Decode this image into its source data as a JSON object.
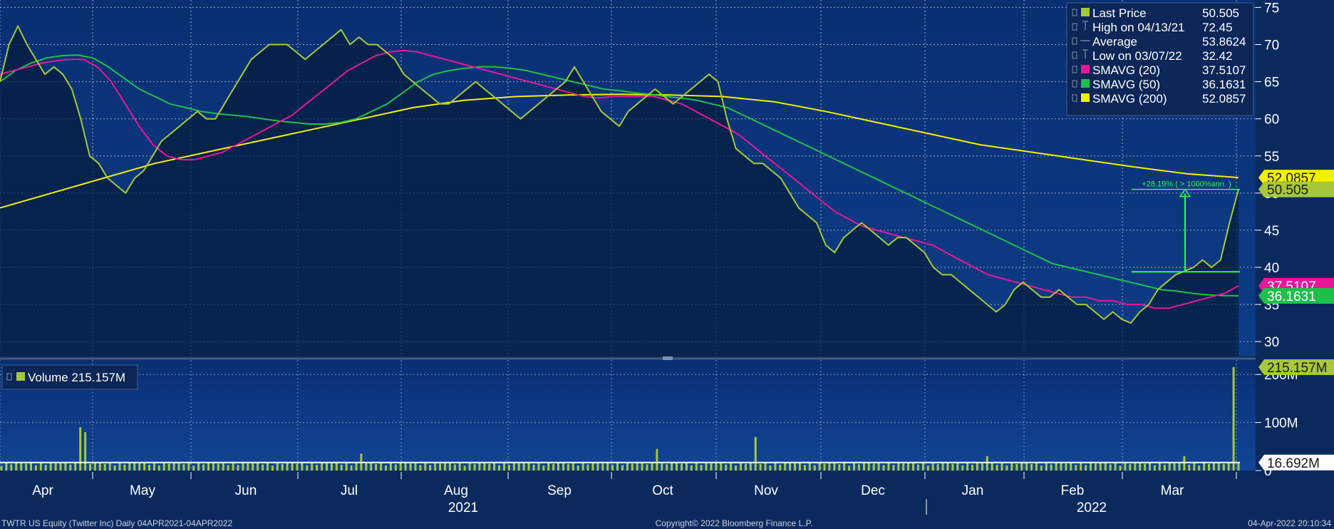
{
  "chart_data": [
    {
      "type": "line",
      "panel": "price",
      "ylim": [
        28,
        76
      ],
      "y_ticks": [
        30,
        35,
        40,
        45,
        50,
        55,
        60,
        65,
        70,
        75
      ],
      "legend": {
        "placement": "top-right",
        "rows": [
          {
            "label": "Last Price",
            "value": "50.505",
            "color": "#a7c838",
            "marker": "square"
          },
          {
            "label": "High on 04/13/21",
            "value": "72.45",
            "color": "#9aa9c4",
            "marker": "tick"
          },
          {
            "label": "Average",
            "value": "53.8624",
            "color": "#9aa9c4",
            "marker": "dash"
          },
          {
            "label": "Low on 03/07/22",
            "value": "32.42",
            "color": "#9aa9c4",
            "marker": "tick"
          },
          {
            "label": "SMAVG (20)",
            "value": "37.5107",
            "color": "#e8179a",
            "marker": "square"
          },
          {
            "label": "SMAVG (50)",
            "value": "36.1631",
            "color": "#1fc04a",
            "marker": "square"
          },
          {
            "label": "SMAVG (200)",
            "value": "52.0857",
            "color": "#f4f000",
            "marker": "square"
          }
        ]
      },
      "price_tags": [
        {
          "value": 52.0857,
          "text": "52.0857",
          "bg": "#f4f000",
          "fg": "#1a1a1a"
        },
        {
          "value": 50.505,
          "text": "50.505",
          "bg": "#a7c838",
          "fg": "#1a1a1a"
        },
        {
          "value": 37.5107,
          "text": "37.5107",
          "bg": "#e8179a",
          "fg": "#ffffff"
        },
        {
          "value": 36.1631,
          "text": "36.1631",
          "bg": "#1fc04a",
          "fg": "#ffffff"
        }
      ],
      "annotation": {
        "text": "+28.19% ( > 1000%ann. )",
        "from": 39.4,
        "to": 50.505,
        "color": "#22ff44"
      },
      "series": [
        {
          "name": "Last Price",
          "color": "#a7c838",
          "values": [
            65,
            70,
            72.5,
            70,
            68,
            66,
            67,
            66,
            64,
            60,
            55,
            54,
            52,
            51,
            50,
            52,
            53,
            55,
            57,
            58,
            59,
            60,
            61,
            60,
            60,
            62,
            64,
            66,
            68,
            69,
            70,
            70,
            70,
            69,
            68,
            69,
            70,
            71,
            72,
            70,
            71,
            70,
            70,
            69,
            68,
            66,
            65,
            64,
            63,
            62,
            62,
            63,
            64,
            65,
            64,
            63,
            62,
            61,
            60,
            61,
            62,
            63,
            64,
            65,
            67,
            65,
            63,
            61,
            60,
            59,
            61,
            62,
            63,
            64,
            63,
            62,
            63,
            64,
            65,
            66,
            65,
            60,
            56,
            55,
            54,
            54,
            53,
            52,
            50,
            48,
            47,
            46,
            43,
            42,
            44,
            45,
            46,
            45,
            44,
            43,
            44,
            44,
            43,
            42,
            40,
            39,
            39,
            38,
            37,
            36,
            35,
            34,
            35,
            37,
            38,
            37,
            36,
            36,
            37,
            36,
            35,
            35,
            34,
            33,
            34,
            33,
            32.5,
            34,
            35,
            37,
            38,
            39,
            39.5,
            40,
            41,
            40,
            41,
            46,
            50.505
          ]
        },
        {
          "name": "SMAVG (20)",
          "color": "#e8179a",
          "values": [
            66,
            66.5,
            67,
            67.5,
            67.8,
            68,
            68,
            67,
            65,
            62,
            59,
            56.5,
            55,
            54.5,
            54.5,
            55,
            55.5,
            56.5,
            57.5,
            58.5,
            59.5,
            60.5,
            62,
            63.5,
            65,
            66.5,
            67.5,
            68.5,
            69,
            69.2,
            69,
            68.5,
            68,
            67.5,
            67,
            66.5,
            66,
            65.5,
            65,
            64.5,
            64,
            63.5,
            63,
            62.8,
            63,
            63,
            63,
            63,
            62.5,
            62,
            61,
            60,
            59,
            58,
            56.5,
            55,
            53.5,
            52,
            50.5,
            49,
            47.5,
            46.5,
            45.5,
            45,
            44.5,
            44,
            43.5,
            43,
            42,
            41,
            40,
            39,
            38.5,
            38,
            37.5,
            37,
            36.5,
            36,
            36,
            35.5,
            35.5,
            35,
            35,
            34.5,
            34.5,
            35,
            35.5,
            36,
            36.5,
            37.5107
          ]
        },
        {
          "name": "SMAVG (50)",
          "color": "#1fc04a",
          "values": [
            65,
            66.5,
            67.5,
            68.2,
            68.5,
            68.6,
            68.2,
            67,
            65.5,
            64,
            63,
            62,
            61.5,
            61,
            60.7,
            60.5,
            60.3,
            60,
            59.7,
            59.5,
            59.3,
            59.3,
            59.5,
            60,
            61,
            62,
            63.5,
            65,
            66,
            66.5,
            66.8,
            67,
            67,
            66.8,
            66.5,
            66,
            65.5,
            65,
            64.5,
            64,
            63.8,
            63.5,
            63.3,
            63,
            62.8,
            62.5,
            62,
            61.5,
            60.5,
            59.5,
            58.5,
            57.5,
            56.5,
            55.5,
            54.5,
            53.5,
            52.5,
            51.5,
            50.5,
            49.5,
            48.5,
            47.5,
            46.5,
            45.5,
            44.5,
            43.5,
            42.5,
            41.5,
            40.5,
            40,
            39.5,
            39,
            38.5,
            38,
            37.5,
            37,
            36.8,
            36.5,
            36.3,
            36.2,
            36.1631
          ]
        },
        {
          "name": "SMAVG (200)",
          "color": "#f4f000",
          "values": [
            48,
            50,
            52,
            54,
            55.5,
            57,
            58.5,
            60,
            61.5,
            62.5,
            63,
            63.2,
            63.3,
            63.2,
            63,
            62.3,
            61,
            59.5,
            58,
            56.5,
            55.5,
            54.5,
            53.5,
            52.6,
            52.0857
          ]
        }
      ]
    },
    {
      "type": "bar",
      "panel": "volume",
      "ylim": [
        0,
        230
      ],
      "y_ticks": [
        0,
        100,
        200
      ],
      "y_tick_labels": [
        "0",
        "100M",
        "200M"
      ],
      "legend": {
        "label": "Volume 215.157M",
        "color": "#a7c838",
        "placement": "top-left"
      },
      "price_tags": [
        {
          "value": 215.157,
          "text": "215.157M",
          "bg": "#a7c838",
          "fg": "#1a1a1a"
        },
        {
          "value": 16.692,
          "text": "16.692M",
          "bg": "#ffffff",
          "fg": "#1a1a1a"
        }
      ],
      "average_line": {
        "value": 16.692,
        "color": "#ffffff"
      },
      "volume_spikes": [
        {
          "pos": 0.063,
          "value": 90
        },
        {
          "pos": 0.068,
          "value": 80
        },
        {
          "pos": 0.29,
          "value": 35
        },
        {
          "pos": 0.53,
          "value": 45
        },
        {
          "pos": 0.61,
          "value": 70
        },
        {
          "pos": 0.795,
          "value": 30
        },
        {
          "pos": 0.955,
          "value": 30
        },
        {
          "pos": 0.997,
          "value": 215.157
        }
      ],
      "volume_typical": 14
    }
  ],
  "x_axis": {
    "months": [
      "Apr",
      "May",
      "Jun",
      "Jul",
      "Aug",
      "Sep",
      "Oct",
      "Nov",
      "Dec",
      "Jan",
      "Feb",
      "Mar"
    ],
    "years": [
      "2021",
      "2022"
    ]
  },
  "footer": {
    "left": "TWTR US Equity (Twitter Inc)  Daily 04APR2021-04APR2022",
    "center": "Copyright© 2022 Bloomberg Finance L.P.",
    "right": "04-Apr-2022 20:10:34"
  }
}
